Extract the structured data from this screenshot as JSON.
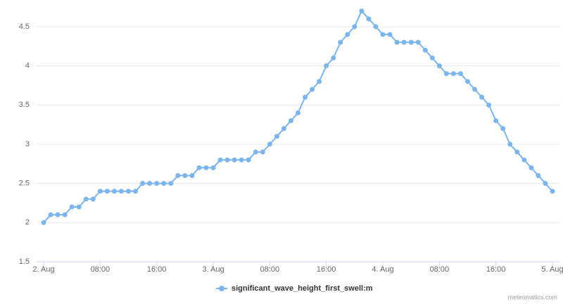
{
  "chart_data": {
    "type": "line",
    "categories": [
      "2. Aug",
      null,
      null,
      null,
      null,
      null,
      null,
      null,
      "08:00",
      null,
      null,
      null,
      null,
      null,
      null,
      null,
      "16:00",
      null,
      null,
      null,
      null,
      null,
      null,
      null,
      "3. Aug",
      null,
      null,
      null,
      null,
      null,
      null,
      null,
      "08:00",
      null,
      null,
      null,
      null,
      null,
      null,
      null,
      "16:00",
      null,
      null,
      null,
      null,
      null,
      null,
      null,
      "4. Aug",
      null,
      null,
      null,
      null,
      null,
      null,
      null,
      "08:00",
      null,
      null,
      null,
      null,
      null,
      null,
      null,
      "16:00",
      null,
      null,
      null,
      null,
      null,
      null,
      null,
      "5. Aug"
    ],
    "series": [
      {
        "name": "significant_wave_height_first_swell:m",
        "color": "#7cb5ec",
        "values": [
          2.0,
          2.1,
          2.1,
          2.1,
          2.2,
          2.2,
          2.3,
          2.3,
          2.4,
          2.4,
          2.4,
          2.4,
          2.4,
          2.4,
          2.5,
          2.5,
          2.5,
          2.5,
          2.5,
          2.6,
          2.6,
          2.6,
          2.7,
          2.7,
          2.7,
          2.8,
          2.8,
          2.8,
          2.8,
          2.8,
          2.9,
          2.9,
          3.0,
          3.1,
          3.2,
          3.3,
          3.4,
          3.6,
          3.7,
          3.8,
          4.0,
          4.1,
          4.3,
          4.4,
          4.5,
          4.7,
          4.6,
          4.5,
          4.4,
          4.4,
          4.3,
          4.3,
          4.3,
          4.3,
          4.2,
          4.1,
          4.0,
          3.9,
          3.9,
          3.9,
          3.8,
          3.7,
          3.6,
          3.5,
          3.3,
          3.2,
          3.0,
          2.9,
          2.8,
          2.7,
          2.6,
          2.5,
          2.4
        ]
      }
    ],
    "ylim": [
      1.5,
      4.75
    ],
    "yticks": [
      1.5,
      2,
      2.5,
      3,
      3.5,
      4,
      4.5
    ],
    "grid": true,
    "legend": "bottom",
    "credits": "meteomatics.com"
  }
}
